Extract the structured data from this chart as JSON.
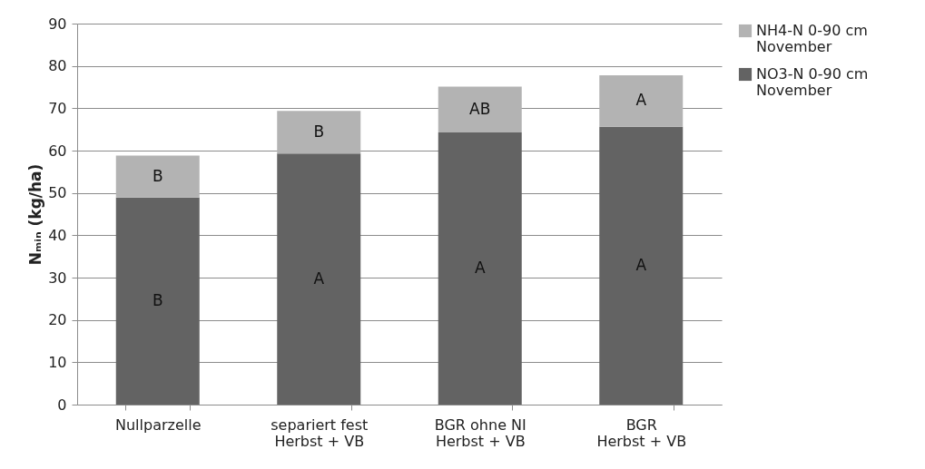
{
  "chart_data": {
    "type": "bar",
    "stacked": true,
    "ylabel": "Nₘᵢₙ (kg/ha)",
    "categories": [
      "Nullparzelle",
      "separiert fest\nHerbst + VB",
      "BGR ohne NI\nHerbst + VB",
      "BGR\nHerbst + VB"
    ],
    "series": [
      {
        "name": "NO3-N 0-90 cm\nNovember",
        "color": "#636363",
        "values": [
          48.9,
          59.3,
          64.3,
          65.6
        ],
        "value_labels": [
          "B",
          "A",
          "A",
          "A"
        ]
      },
      {
        "name": "NH4-N 0-90 cm\nNovember",
        "color": "#b3b3b3",
        "values": [
          9.9,
          10.1,
          10.8,
          12.2
        ],
        "value_labels": [
          "B",
          "B",
          "AB",
          "A"
        ]
      }
    ],
    "ylim": [
      0,
      90
    ],
    "yticks": [
      0,
      10,
      20,
      30,
      40,
      50,
      60,
      70,
      80,
      90
    ],
    "grid": "y",
    "legend": "right"
  }
}
